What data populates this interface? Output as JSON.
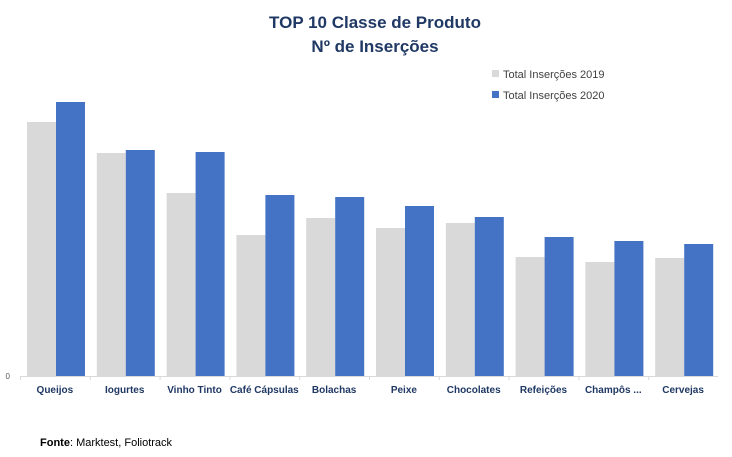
{
  "chart_data": {
    "type": "bar",
    "title": [
      "TOP 10  Classe de Produto",
      "Nº de Inserções"
    ],
    "xlabel": "",
    "ylabel": "",
    "ylim": [
      0,
      280
    ],
    "y_ticks": [
      "0"
    ],
    "grid": false,
    "legend_position": "top-right",
    "categories": [
      "Queijos",
      "Iogurtes",
      "Vinho Tinto",
      "Café Cápsulas",
      "Bolachas",
      "Peixe",
      "Chocolates",
      "Refeições",
      "Champôs ...",
      "Cervejas"
    ],
    "series": [
      {
        "name": "Total Inserções 2019",
        "color": "#d9d9d9",
        "values": [
          254,
          223,
          183,
          141,
          158,
          148,
          153,
          119,
          114,
          118
        ]
      },
      {
        "name": "Total Inserções 2020",
        "color": "#4472c4",
        "values": [
          274,
          226,
          224,
          181,
          179,
          170,
          159,
          139,
          135,
          132
        ]
      }
    ]
  },
  "source": {
    "label": "Fonte",
    "text": ": Marktest, Foliotrack"
  }
}
